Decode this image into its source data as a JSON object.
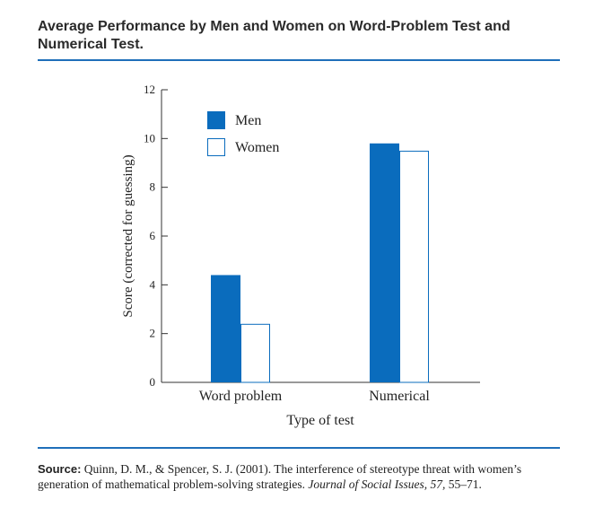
{
  "header": {
    "title": "Average Performance by Men and Women on Word-Problem Test and Numerical Test."
  },
  "chart_data": {
    "type": "bar",
    "title": "Average Performance by Men and Women on Word-Problem Test and Numerical Test.",
    "xlabel": "Type of test",
    "ylabel": "Score (corrected for guessing)",
    "categories": [
      "Word problem",
      "Numerical"
    ],
    "series": [
      {
        "name": "Men",
        "values": [
          4.4,
          9.8
        ],
        "color": "#0a6cbd",
        "style": "filled"
      },
      {
        "name": "Women",
        "values": [
          2.4,
          9.5
        ],
        "color": "#0a6cbd",
        "style": "outline"
      }
    ],
    "ylim": [
      0,
      12
    ],
    "yticks": [
      0,
      2,
      4,
      6,
      8,
      10,
      12
    ],
    "legend_position": "top-left",
    "grid": false
  },
  "source": {
    "label": "Source:",
    "text": "Quinn, D. M., & Spencer, S. J. (2001). The interference of stereotype threat with women’s generation of mathematical problem-solving strategies.",
    "journal": "Journal of Social Issues, 57,",
    "pages": "55–71."
  },
  "colors": {
    "accent": "#1f6fba",
    "bar": "#0a6cbd",
    "axis": "#333333"
  }
}
